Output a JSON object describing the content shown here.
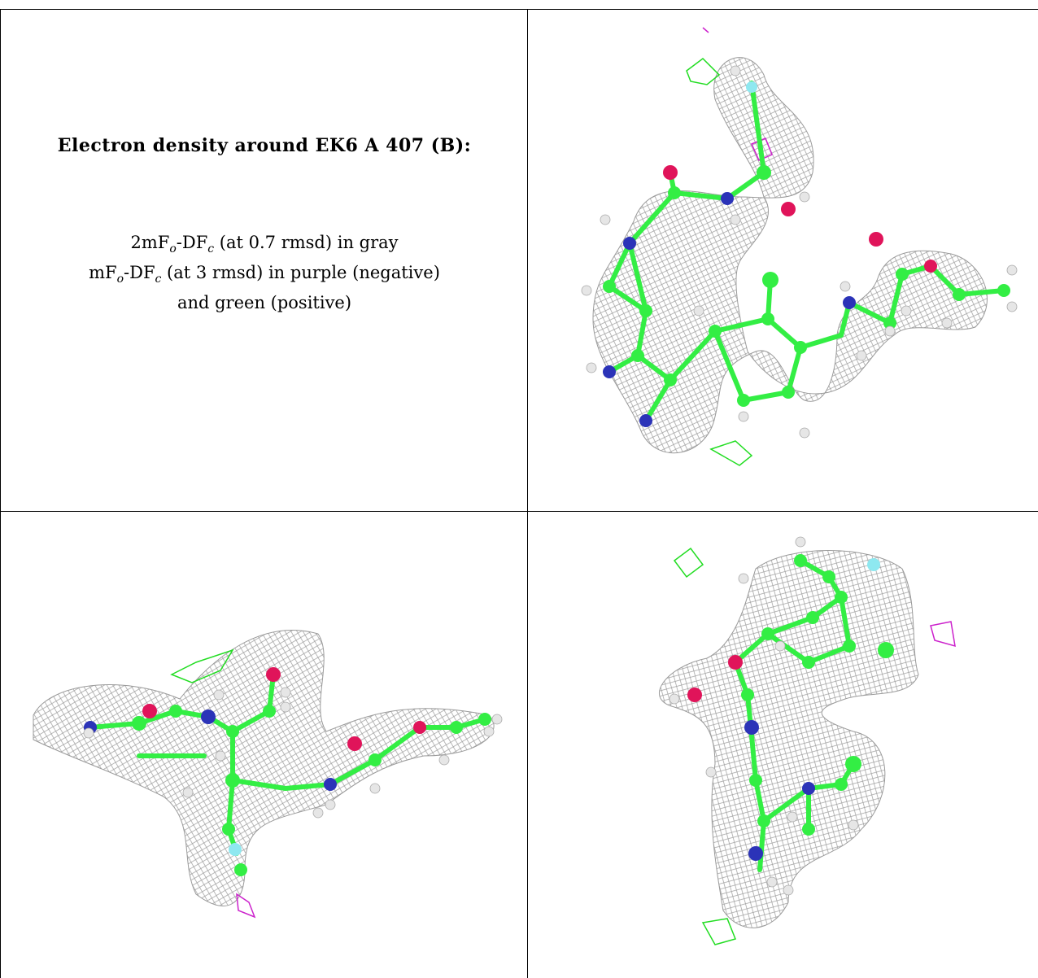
{
  "caption": {
    "title": "Electron density around EK6 A 407 (B):",
    "line1_prefix": "2mF",
    "line1_sub1": "o",
    "line1_mid": "-DF",
    "line1_sub2": "c",
    "line1_suffix": " (at 0.7 rmsd) in gray",
    "line2_prefix": "mF",
    "line2_sub1": "o",
    "line2_mid": "-DF",
    "line2_sub2": "c",
    "line2_suffix": " (at 3 rmsd) in purple (negative)",
    "line3": "and green (positive)"
  },
  "colors": {
    "mesh_gray": "#9a9a9a",
    "carbon_green": "#33ee44",
    "nitrogen_blue": "#2b33b8",
    "oxygen_red": "#e0145a",
    "fluorine_cyan": "#8ee8f0",
    "hydrogen_white": "#e6e6e6",
    "diff_positive": "#22dd22",
    "diff_negative": "#cc22cc"
  },
  "views": [
    {
      "name": "view-top-right"
    },
    {
      "name": "view-bottom-left"
    },
    {
      "name": "view-bottom-right"
    }
  ]
}
